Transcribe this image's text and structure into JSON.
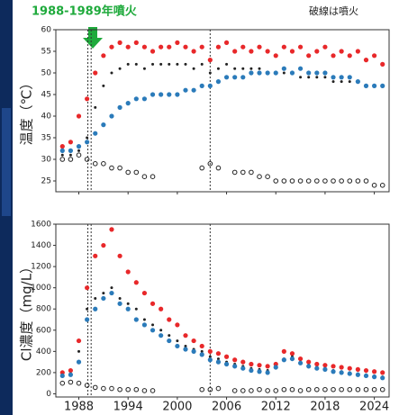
{
  "chart_data": [
    {
      "type": "scatter",
      "annotation": "1988-1989年噴火",
      "note": "破線は噴火",
      "ylabel": "温度（℃）",
      "x": [
        1986,
        1987,
        1988,
        1989,
        1990,
        1991,
        1992,
        1993,
        1994,
        1995,
        1996,
        1997,
        1998,
        1999,
        2000,
        2001,
        2002,
        2003,
        2004,
        2005,
        2006,
        2007,
        2008,
        2009,
        2010,
        2011,
        2012,
        2013,
        2014,
        2015,
        2016,
        2017,
        2018,
        2019,
        2020,
        2021,
        2022,
        2023,
        2024,
        2025
      ],
      "series": [
        {
          "color": "#e8282a",
          "marker": "filled",
          "values": [
            33,
            34,
            40,
            44,
            50,
            54,
            56,
            57,
            56,
            57,
            56,
            55,
            56,
            56,
            57,
            56,
            55,
            56,
            53,
            56,
            57,
            55,
            56,
            55,
            56,
            55,
            54,
            56,
            55,
            56,
            54,
            55,
            56,
            54,
            55,
            54,
            55,
            53,
            54,
            52
          ]
        },
        {
          "color": "#222222",
          "marker": "small",
          "values": [
            31,
            31,
            32,
            35,
            42,
            47,
            50,
            51,
            52,
            52,
            51,
            52,
            52,
            52,
            52,
            52,
            51,
            52,
            50,
            51,
            52,
            51,
            51,
            51,
            51,
            50,
            50,
            50,
            50,
            49,
            49,
            49,
            49,
            48,
            48,
            48,
            48,
            47,
            47,
            47
          ]
        },
        {
          "color": "#2b7bba",
          "marker": "filled",
          "values": [
            32,
            32,
            33,
            34,
            36,
            38,
            40,
            42,
            43,
            44,
            44,
            45,
            45,
            45,
            45,
            46,
            46,
            47,
            47,
            48,
            49,
            49,
            49,
            50,
            50,
            50,
            50,
            51,
            50,
            51,
            50,
            50,
            50,
            49,
            49,
            49,
            48,
            47,
            47,
            47
          ]
        },
        {
          "color": "#222222",
          "marker": "open",
          "values": [
            30,
            30,
            31,
            30,
            29,
            29,
            28,
            28,
            27,
            27,
            26,
            26,
            null,
            null,
            null,
            null,
            null,
            28,
            29,
            28,
            null,
            27,
            27,
            27,
            26,
            26,
            25,
            25,
            25,
            25,
            25,
            25,
            25,
            25,
            25,
            25,
            25,
            25,
            24,
            24
          ]
        }
      ],
      "eruptions": [
        1989.1,
        1989.5,
        2004.0
      ],
      "xlim": [
        1985.2,
        2025.8
      ],
      "xticks": [
        1988,
        1994,
        2000,
        2006,
        2012,
        2018,
        2024
      ],
      "show_xtick_labels": false,
      "ylim": [
        22.5,
        60
      ],
      "yticks": [
        25,
        30,
        35,
        40,
        45,
        50,
        55,
        60
      ]
    },
    {
      "type": "scatter",
      "ylabel": "Cl濃度（mg/L）",
      "x": [
        1986,
        1987,
        1988,
        1989,
        1990,
        1991,
        1992,
        1993,
        1994,
        1995,
        1996,
        1997,
        1998,
        1999,
        2000,
        2001,
        2002,
        2003,
        2004,
        2005,
        2006,
        2007,
        2008,
        2009,
        2010,
        2011,
        2012,
        2013,
        2014,
        2015,
        2016,
        2017,
        2018,
        2019,
        2020,
        2021,
        2022,
        2023,
        2024,
        2025
      ],
      "series": [
        {
          "color": "#e8282a",
          "marker": "filled",
          "values": [
            200,
            220,
            500,
            1000,
            1300,
            1400,
            1550,
            1300,
            1150,
            1050,
            950,
            850,
            800,
            700,
            650,
            550,
            500,
            450,
            400,
            380,
            350,
            320,
            300,
            280,
            270,
            260,
            280,
            400,
            380,
            330,
            300,
            280,
            270,
            260,
            250,
            240,
            230,
            220,
            210,
            200
          ]
        },
        {
          "color": "#222222",
          "marker": "small",
          "values": [
            180,
            190,
            400,
            800,
            900,
            950,
            1000,
            900,
            850,
            800,
            700,
            650,
            600,
            550,
            500,
            450,
            420,
            400,
            350,
            330,
            300,
            280,
            260,
            240,
            230,
            220,
            260,
            330,
            350,
            300,
            270,
            250,
            240,
            220,
            210,
            200,
            190,
            180,
            170,
            160
          ]
        },
        {
          "color": "#2b7bba",
          "marker": "filled",
          "values": [
            170,
            180,
            300,
            700,
            800,
            900,
            950,
            850,
            800,
            700,
            650,
            600,
            550,
            500,
            450,
            420,
            400,
            370,
            320,
            300,
            280,
            260,
            240,
            220,
            210,
            200,
            250,
            320,
            330,
            290,
            260,
            240,
            230,
            210,
            200,
            190,
            180,
            170,
            160,
            150
          ]
        },
        {
          "color": "#222222",
          "marker": "open",
          "values": [
            100,
            110,
            100,
            80,
            60,
            50,
            50,
            40,
            40,
            40,
            30,
            30,
            null,
            null,
            null,
            null,
            null,
            40,
            40,
            50,
            null,
            30,
            30,
            30,
            40,
            30,
            30,
            40,
            40,
            30,
            40,
            40,
            40,
            40,
            40,
            40,
            40,
            40,
            40,
            40
          ]
        }
      ],
      "eruptions": [
        1989.1,
        1989.5,
        2004.0
      ],
      "xlim": [
        1985.2,
        2025.8
      ],
      "xticks": [
        1988,
        1994,
        2000,
        2006,
        2012,
        2018,
        2024
      ],
      "show_xtick_labels": true,
      "ylim": [
        -30,
        1600
      ],
      "yticks": [
        0,
        200,
        400,
        600,
        800,
        1000,
        1200,
        1400,
        1600
      ]
    }
  ]
}
